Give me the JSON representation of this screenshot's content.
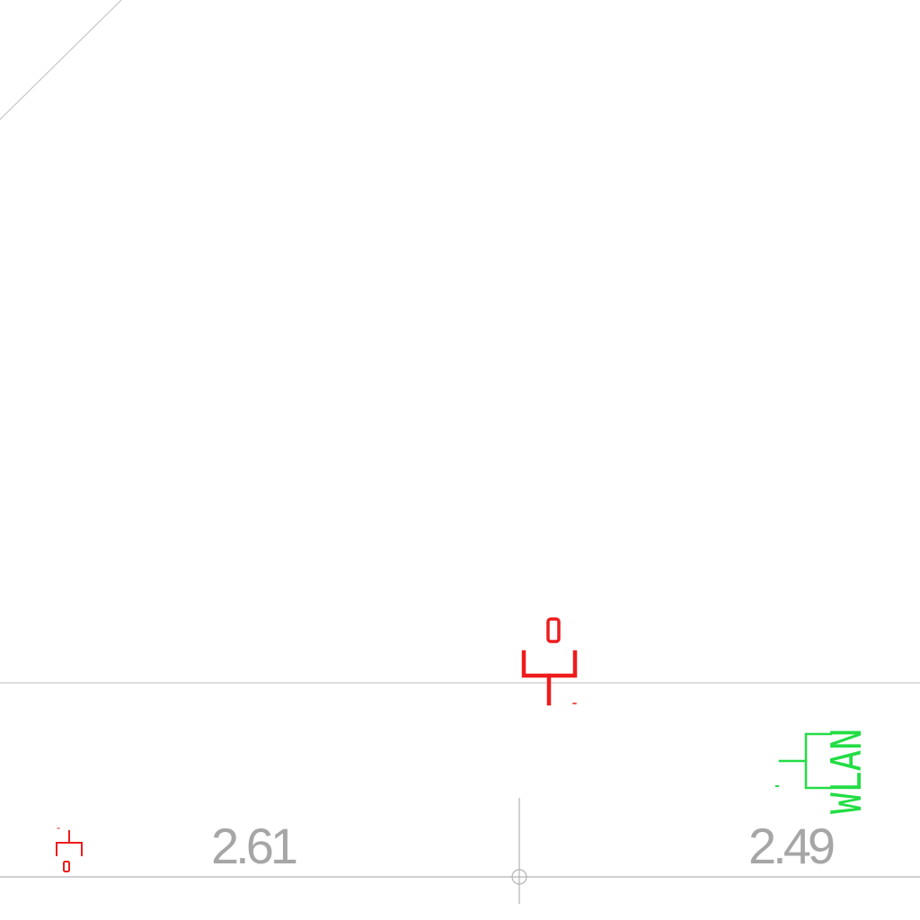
{
  "dimensions": {
    "left": "2.61",
    "right": "2.49"
  },
  "symbols": {
    "outlet_top_letter": "D",
    "outlet_left_letter": "D",
    "wlan_label": "WLAN"
  },
  "colors": {
    "background": "#ffffff",
    "wall_lines": "#b3b3b3",
    "dimension_text": "#a6a6a6",
    "data_outlet": "#ee1c1c",
    "wlan_outlet": "#22dd44"
  }
}
